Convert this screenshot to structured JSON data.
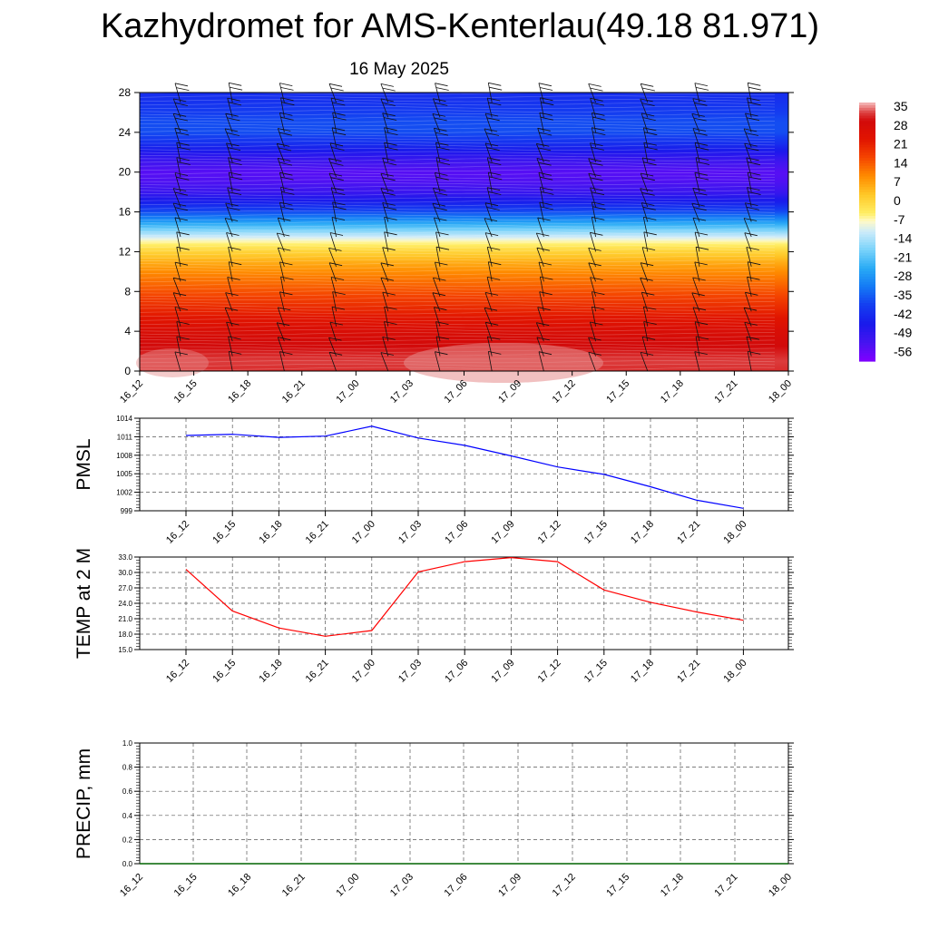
{
  "page": {
    "title": "Kazhydromet for AMS-Kenterlau(49.18 81.971)",
    "subtitle": "16 May 2025"
  },
  "chart_data": [
    {
      "type": "heatmap",
      "title": "",
      "xlabel": "",
      "ylabel": "",
      "categories": [
        "16_12",
        "16_15",
        "16_18",
        "16_21",
        "17_00",
        "17_03",
        "17_06",
        "17_09",
        "17_12",
        "17_15",
        "17_18",
        "17_21",
        "18_00"
      ],
      "y_ticks": [
        0,
        4,
        8,
        12,
        16,
        20,
        24,
        28
      ],
      "ylim": [
        0,
        28
      ],
      "colorbar": {
        "labels": [
          "35",
          "28",
          "21",
          "14",
          "7",
          "0",
          "-7",
          "-14",
          "-21",
          "-28",
          "-35",
          "-42",
          "-49",
          "-56"
        ],
        "range": [
          -63,
          35
        ]
      },
      "temperature_by_level": {
        "levels": [
          0,
          1,
          2,
          3,
          4,
          5,
          6,
          7,
          8,
          9,
          10,
          11,
          12,
          13,
          14,
          15,
          16,
          17,
          18,
          19,
          20,
          21,
          22,
          23,
          24,
          25,
          26,
          27,
          28
        ],
        "values": [
          30,
          31,
          29,
          27,
          25,
          22,
          19,
          16,
          13,
          10,
          7,
          3,
          -2,
          -9,
          -19,
          -30,
          -40,
          -48,
          -54,
          -57,
          -58,
          -55,
          -50,
          -44,
          -40,
          -40,
          -42,
          -44,
          -45
        ]
      },
      "wind_barbs": true,
      "grid": false
    },
    {
      "type": "line",
      "ylabel": "PMSL",
      "xlabel": "",
      "categories": [
        "16_12",
        "16_15",
        "16_18",
        "16_21",
        "17_00",
        "17_03",
        "17_06",
        "17_09",
        "17_12",
        "17_15",
        "17_18",
        "17_21",
        "18_00"
      ],
      "y_ticks": [
        "999",
        "1002",
        "1005",
        "1008",
        "1011",
        "1014"
      ],
      "ylim": [
        999,
        1014
      ],
      "series": [
        {
          "values": [
            1011.2,
            1011.4,
            1010.9,
            1011.1,
            1012.7,
            1010.8,
            1009.6,
            1007.9,
            1006.1,
            1004.9,
            1002.9,
            1000.7,
            999.4
          ],
          "color": "#0000ff"
        }
      ],
      "grid": true
    },
    {
      "type": "line",
      "ylabel": "TEMP at 2 M",
      "xlabel": "",
      "categories": [
        "16_12",
        "16_15",
        "16_18",
        "16_21",
        "17_00",
        "17_03",
        "17_06",
        "17_09",
        "17_12",
        "17_15",
        "17_18",
        "17_21",
        "18_00"
      ],
      "y_ticks": [
        "15.0",
        "18.0",
        "21.0",
        "24.0",
        "27.0",
        "30.0",
        "33.0"
      ],
      "ylim": [
        15,
        33
      ],
      "series": [
        {
          "values": [
            30.6,
            22.5,
            19.2,
            17.6,
            18.7,
            30.1,
            32.1,
            32.9,
            32.1,
            26.6,
            24.2,
            22.3,
            20.7
          ],
          "color": "#ff0000"
        }
      ],
      "grid": true
    },
    {
      "type": "line",
      "ylabel": "PRECIP, mm",
      "xlabel": "",
      "categories": [
        "16_12",
        "16_15",
        "16_18",
        "16_21",
        "17_00",
        "17_03",
        "17_06",
        "17_09",
        "17_12",
        "17_15",
        "17_18",
        "17_21",
        "18_00"
      ],
      "y_ticks": [
        "0.0",
        "0.2",
        "0.4",
        "0.6",
        "0.8",
        "1.0"
      ],
      "ylim": [
        0,
        1
      ],
      "series": [
        {
          "values": [
            0,
            0,
            0,
            0,
            0,
            0,
            0,
            0,
            0,
            0,
            0,
            0,
            0
          ],
          "color": "#006400"
        }
      ],
      "grid": true
    }
  ]
}
